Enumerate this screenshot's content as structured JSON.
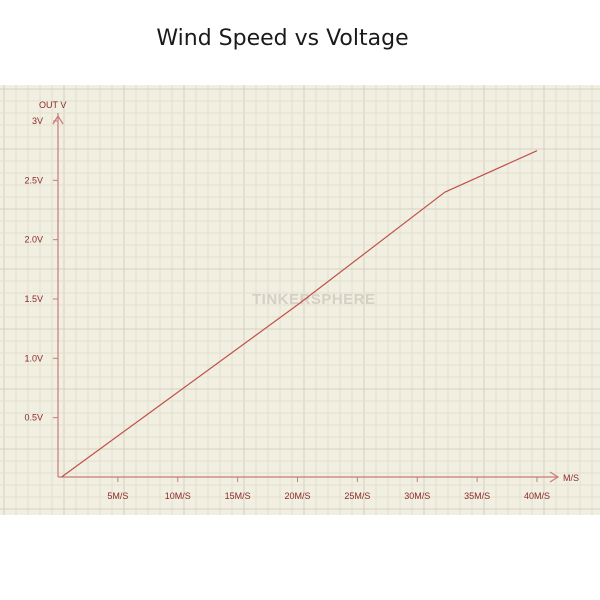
{
  "title": "Wind Speed vs Voltage",
  "watermark": "TINKERSPHERE",
  "colors": {
    "background": "#f1efe1",
    "grid_minor": "#e3dfcd",
    "grid_major": "#d6d1bd",
    "axis": "#c97a7a",
    "line": "#c0504d",
    "text": "#8b2a2a"
  },
  "chart_data": {
    "type": "line",
    "title": "Wind Speed vs Voltage",
    "xlabel": "M/S",
    "ylabel": "OUT V",
    "xlim": [
      0,
      40
    ],
    "ylim": [
      0,
      3
    ],
    "grid": true,
    "x_ticks": [
      {
        "value": 5,
        "label": "5M/S"
      },
      {
        "value": 10,
        "label": "10M/S"
      },
      {
        "value": 15,
        "label": "15M/S"
      },
      {
        "value": 20,
        "label": "20M/S"
      },
      {
        "value": 25,
        "label": "25M/S"
      },
      {
        "value": 30,
        "label": "30M/S"
      },
      {
        "value": 35,
        "label": "35M/S"
      },
      {
        "value": 40,
        "label": "40M/S"
      }
    ],
    "y_ticks": [
      {
        "value": 0.5,
        "label": "0.5V"
      },
      {
        "value": 1.0,
        "label": "1.0V"
      },
      {
        "value": 1.5,
        "label": "1.5V"
      },
      {
        "value": 2.0,
        "label": "2.0V"
      },
      {
        "value": 2.5,
        "label": "2.5V"
      },
      {
        "value": 3.0,
        "label": "3V"
      }
    ],
    "series": [
      {
        "x": [
          0.3,
          7.5,
          20,
          32.3,
          40
        ],
        "y": [
          0,
          0.53,
          1.45,
          2.4,
          2.75
        ]
      }
    ]
  }
}
